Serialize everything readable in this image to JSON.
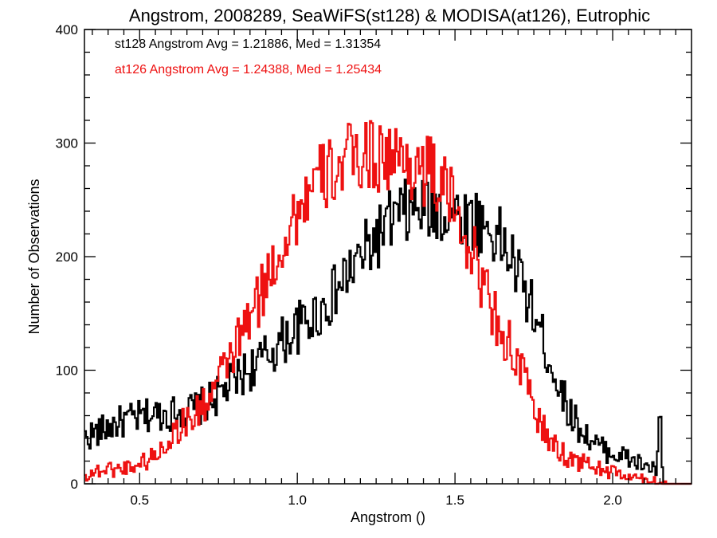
{
  "chart_data": {
    "type": "line",
    "style": "step histogram",
    "title": "Angstrom, 2008289, SeaWiFS(st128) & MODISA(at126), Eutrophic",
    "xlabel": "Angstrom ()",
    "ylabel": "Number of Observations",
    "xlim": [
      0.325,
      2.25
    ],
    "ylim": [
      0,
      400
    ],
    "xticks": [
      0.5,
      1.0,
      1.5,
      2.0
    ],
    "xtick_labels": [
      "0.5",
      "1.0",
      "1.5",
      "2.0"
    ],
    "yticks": [
      0,
      100,
      200,
      300,
      400
    ],
    "ytick_labels": [
      "0",
      "100",
      "200",
      "300",
      "400"
    ],
    "grid": false,
    "bin_width": 0.005,
    "annotations": [
      {
        "text": "st128 Angstrom Avg = 1.21886, Med = 1.31354",
        "color": "#000000"
      },
      {
        "text": "at126 Angstrom Avg = 1.24388, Med = 1.25434",
        "color": "#ee1111"
      }
    ],
    "series": [
      {
        "color": "#000000",
        "points": [
          [
            0.325,
            40
          ],
          [
            0.35,
            44
          ],
          [
            0.375,
            46
          ],
          [
            0.4,
            50
          ],
          [
            0.425,
            53
          ],
          [
            0.45,
            55
          ],
          [
            0.475,
            57
          ],
          [
            0.5,
            58
          ],
          [
            0.525,
            60
          ],
          [
            0.55,
            61
          ],
          [
            0.575,
            62
          ],
          [
            0.6,
            62
          ],
          [
            0.625,
            63
          ],
          [
            0.65,
            64
          ],
          [
            0.675,
            66
          ],
          [
            0.7,
            69
          ],
          [
            0.725,
            73
          ],
          [
            0.75,
            78
          ],
          [
            0.775,
            84
          ],
          [
            0.8,
            90
          ],
          [
            0.825,
            96
          ],
          [
            0.85,
            101
          ],
          [
            0.875,
            106
          ],
          [
            0.9,
            112
          ],
          [
            0.925,
            118
          ],
          [
            0.95,
            125
          ],
          [
            0.975,
            131
          ],
          [
            1.0,
            137
          ],
          [
            1.025,
            142
          ],
          [
            1.05,
            147
          ],
          [
            1.075,
            153
          ],
          [
            1.1,
            161
          ],
          [
            1.125,
            170
          ],
          [
            1.15,
            180
          ],
          [
            1.175,
            190
          ],
          [
            1.2,
            198
          ],
          [
            1.225,
            207
          ],
          [
            1.25,
            216
          ],
          [
            1.275,
            224
          ],
          [
            1.3,
            231
          ],
          [
            1.325,
            236
          ],
          [
            1.35,
            239
          ],
          [
            1.375,
            241
          ],
          [
            1.4,
            242
          ],
          [
            1.425,
            242
          ],
          [
            1.45,
            241
          ],
          [
            1.475,
            240
          ],
          [
            1.5,
            238
          ],
          [
            1.525,
            235
          ],
          [
            1.55,
            232
          ],
          [
            1.575,
            230
          ],
          [
            1.6,
            226
          ],
          [
            1.625,
            220
          ],
          [
            1.65,
            212
          ],
          [
            1.675,
            200
          ],
          [
            1.7,
            185
          ],
          [
            1.725,
            168
          ],
          [
            1.75,
            150
          ],
          [
            1.775,
            130
          ],
          [
            1.8,
            110
          ],
          [
            1.825,
            90
          ],
          [
            1.85,
            72
          ],
          [
            1.875,
            58
          ],
          [
            1.9,
            48
          ],
          [
            1.925,
            40
          ],
          [
            1.95,
            34
          ],
          [
            1.975,
            30
          ],
          [
            2.0,
            27
          ],
          [
            2.025,
            25
          ],
          [
            2.05,
            22
          ],
          [
            2.075,
            19
          ],
          [
            2.1,
            16
          ],
          [
            2.12,
            14
          ],
          [
            2.14,
            12
          ],
          [
            2.145,
            30
          ],
          [
            2.15,
            68
          ],
          [
            2.155,
            30
          ],
          [
            2.16,
            0
          ],
          [
            2.25,
            0
          ]
        ]
      },
      {
        "color": "#ee1111",
        "points": [
          [
            0.325,
            6
          ],
          [
            0.35,
            10
          ],
          [
            0.375,
            12
          ],
          [
            0.4,
            13
          ],
          [
            0.425,
            13
          ],
          [
            0.45,
            14
          ],
          [
            0.475,
            16
          ],
          [
            0.5,
            18
          ],
          [
            0.525,
            21
          ],
          [
            0.55,
            25
          ],
          [
            0.575,
            33
          ],
          [
            0.6,
            42
          ],
          [
            0.625,
            50
          ],
          [
            0.65,
            55
          ],
          [
            0.675,
            60
          ],
          [
            0.7,
            68
          ],
          [
            0.725,
            78
          ],
          [
            0.75,
            90
          ],
          [
            0.775,
            104
          ],
          [
            0.8,
            118
          ],
          [
            0.825,
            132
          ],
          [
            0.85,
            146
          ],
          [
            0.875,
            160
          ],
          [
            0.9,
            177
          ],
          [
            0.925,
            194
          ],
          [
            0.95,
            210
          ],
          [
            0.975,
            225
          ],
          [
            1.0,
            240
          ],
          [
            1.025,
            252
          ],
          [
            1.05,
            260
          ],
          [
            1.075,
            267
          ],
          [
            1.1,
            273
          ],
          [
            1.125,
            278
          ],
          [
            1.15,
            283
          ],
          [
            1.175,
            286
          ],
          [
            1.2,
            289
          ],
          [
            1.225,
            290
          ],
          [
            1.25,
            290
          ],
          [
            1.275,
            289
          ],
          [
            1.3,
            287
          ],
          [
            1.325,
            285
          ],
          [
            1.35,
            283
          ],
          [
            1.375,
            281
          ],
          [
            1.4,
            278
          ],
          [
            1.425,
            273
          ],
          [
            1.45,
            265
          ],
          [
            1.475,
            255
          ],
          [
            1.5,
            242
          ],
          [
            1.525,
            227
          ],
          [
            1.55,
            208
          ],
          [
            1.575,
            188
          ],
          [
            1.6,
            168
          ],
          [
            1.625,
            150
          ],
          [
            1.65,
            135
          ],
          [
            1.675,
            120
          ],
          [
            1.7,
            105
          ],
          [
            1.725,
            88
          ],
          [
            1.75,
            68
          ],
          [
            1.775,
            50
          ],
          [
            1.8,
            38
          ],
          [
            1.825,
            30
          ],
          [
            1.85,
            25
          ],
          [
            1.875,
            21
          ],
          [
            1.9,
            19
          ],
          [
            1.925,
            17
          ],
          [
            1.95,
            14
          ],
          [
            1.975,
            12
          ],
          [
            2.0,
            10
          ],
          [
            2.025,
            8
          ],
          [
            2.05,
            6
          ],
          [
            2.075,
            5
          ],
          [
            2.1,
            4
          ],
          [
            2.125,
            3
          ],
          [
            2.15,
            1
          ],
          [
            2.175,
            0
          ],
          [
            2.25,
            0
          ]
        ]
      }
    ]
  }
}
